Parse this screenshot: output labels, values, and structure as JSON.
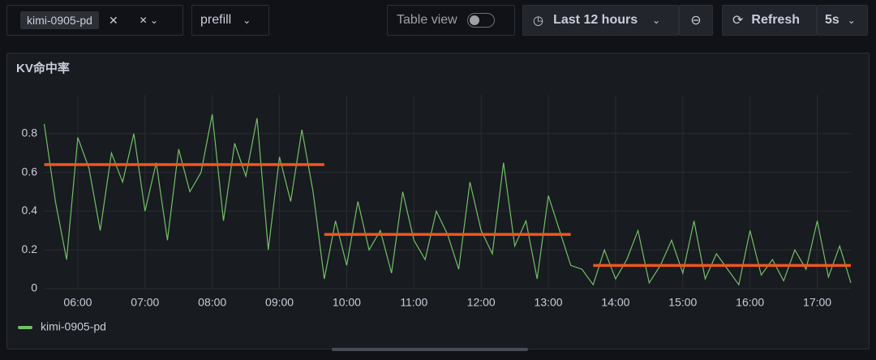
{
  "toolbar": {
    "variable_tag": "kimi-0905-pd",
    "mode": "prefill",
    "table_view": "Table view",
    "time_range": "Last 12 hours",
    "refresh": "Refresh",
    "refresh_interval": "5s"
  },
  "chart_data": {
    "type": "line",
    "title": "KV命中率",
    "x": [
      "05:30",
      "05:40",
      "05:50",
      "06:00",
      "06:10",
      "06:20",
      "06:30",
      "06:40",
      "06:50",
      "07:00",
      "07:10",
      "07:20",
      "07:30",
      "07:40",
      "07:50",
      "08:00",
      "08:10",
      "08:20",
      "08:30",
      "08:40",
      "08:50",
      "09:00",
      "09:10",
      "09:20",
      "09:30",
      "09:40",
      "09:50",
      "10:00",
      "10:10",
      "10:20",
      "10:30",
      "10:40",
      "10:50",
      "11:00",
      "11:10",
      "11:20",
      "11:30",
      "11:40",
      "11:50",
      "12:00",
      "12:10",
      "12:20",
      "12:30",
      "12:40",
      "12:50",
      "13:00",
      "13:10",
      "13:20",
      "13:30",
      "13:40",
      "13:50",
      "14:00",
      "14:10",
      "14:20",
      "14:30",
      "14:40",
      "14:50",
      "15:00",
      "15:10",
      "15:20",
      "15:30",
      "15:40",
      "15:50",
      "16:00",
      "16:10",
      "16:20",
      "16:30",
      "16:40",
      "16:50",
      "17:00",
      "17:10",
      "17:20",
      "17:30"
    ],
    "series": [
      {
        "name": "kimi-0905-pd",
        "color": "#73bf69",
        "values": [
          0.85,
          0.45,
          0.15,
          0.78,
          0.62,
          0.3,
          0.7,
          0.55,
          0.8,
          0.4,
          0.65,
          0.25,
          0.72,
          0.5,
          0.6,
          0.9,
          0.35,
          0.75,
          0.58,
          0.88,
          0.2,
          0.68,
          0.45,
          0.82,
          0.5,
          0.05,
          0.35,
          0.12,
          0.45,
          0.2,
          0.3,
          0.08,
          0.5,
          0.25,
          0.15,
          0.4,
          0.28,
          0.1,
          0.55,
          0.3,
          0.18,
          0.65,
          0.22,
          0.35,
          0.05,
          0.48,
          0.3,
          0.12,
          0.1,
          0.02,
          0.2,
          0.05,
          0.15,
          0.3,
          0.03,
          0.12,
          0.25,
          0.08,
          0.35,
          0.05,
          0.18,
          0.1,
          0.02,
          0.3,
          0.07,
          0.15,
          0.04,
          0.2,
          0.1,
          0.35,
          0.06,
          0.22,
          0.03
        ]
      }
    ],
    "segments_color": "#f2561d",
    "segments": [
      {
        "from": "05:30",
        "to": "09:40",
        "value": 0.64
      },
      {
        "from": "09:40",
        "to": "13:20",
        "value": 0.28
      },
      {
        "from": "13:40",
        "to": "17:30",
        "value": 0.12
      }
    ],
    "xlim": [
      "05:30",
      "17:30"
    ],
    "xticks": [
      "06:00",
      "07:00",
      "08:00",
      "09:00",
      "10:00",
      "11:00",
      "12:00",
      "13:00",
      "14:00",
      "15:00",
      "16:00",
      "17:00"
    ],
    "ylim": [
      0,
      1
    ],
    "yticks": [
      0,
      0.2,
      0.4,
      0.6,
      0.8
    ],
    "grid": true
  }
}
